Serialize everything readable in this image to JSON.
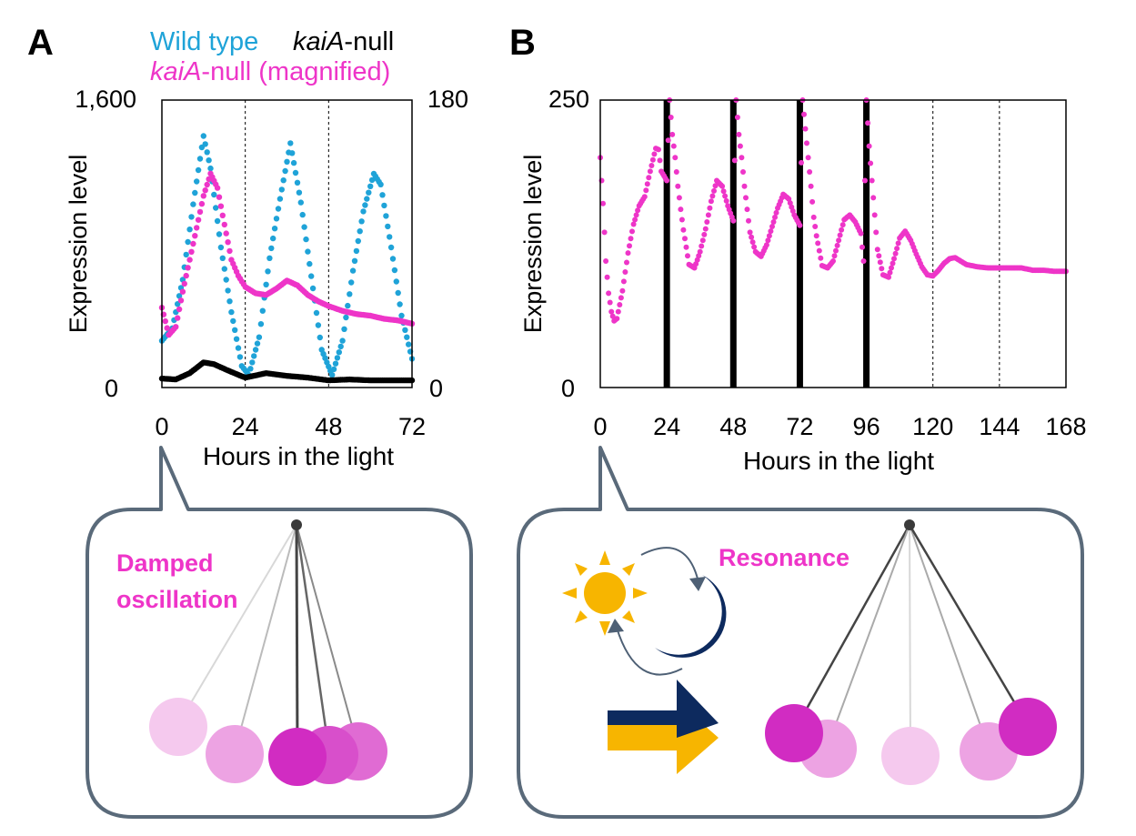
{
  "colors": {
    "wild_type": "#1fa3d8",
    "kaiA_null": "#000000",
    "kaiA_magnified": "#ee35c8",
    "frame": "#5a6a7a",
    "sun": "#f7b500",
    "moon": "#0d2a5e",
    "arrow": "#4e6075"
  },
  "panels": {
    "a": {
      "letter": "A",
      "legend_wild": "Wild type",
      "legend_null_italic": "kaiA",
      "legend_null_rest": "-null",
      "legend_mag_italic": "kaiA",
      "legend_mag_rest": "-null (magnified)",
      "y_left_top": "1,600",
      "y_left_bottom": "0",
      "y_right_top": "180",
      "y_right_bottom": "0",
      "ylabel": "Expression level",
      "xlabel": "Hours in the light",
      "bubble_text_line1": "Damped",
      "bubble_text_line2": "oscillation"
    },
    "b": {
      "letter": "B",
      "y_top": "250",
      "y_bottom": "0",
      "ylabel": "Expression level",
      "xlabel": "Hours in the light",
      "bubble_text": "Resonance"
    }
  },
  "chart_data": [
    {
      "type": "scatter",
      "panel": "A",
      "xlabel": "Hours in the light",
      "ylabel": "Expression level",
      "xlim": [
        0,
        72
      ],
      "xticks": [
        0,
        24,
        48,
        72
      ],
      "vlines_dashed": [
        24,
        48
      ],
      "ylim_left": [
        0,
        1600
      ],
      "ylim_right": [
        0,
        180
      ],
      "series": [
        {
          "name": "Wild type",
          "axis": "left",
          "color": "#1fa3d8",
          "points": [
            [
              0,
              260
            ],
            [
              3,
              330
            ],
            [
              6,
              600
            ],
            [
              9,
              1020
            ],
            [
              12,
              1400
            ],
            [
              14,
              1220
            ],
            [
              17,
              780
            ],
            [
              20,
              420
            ],
            [
              23,
              120
            ],
            [
              25,
              70
            ],
            [
              28,
              280
            ],
            [
              31,
              720
            ],
            [
              34,
              1050
            ],
            [
              37,
              1360
            ],
            [
              40,
              1030
            ],
            [
              43,
              620
            ],
            [
              46,
              210
            ],
            [
              49,
              70
            ],
            [
              52,
              260
            ],
            [
              55,
              650
            ],
            [
              58,
              980
            ],
            [
              61,
              1190
            ],
            [
              63,
              1130
            ],
            [
              66,
              780
            ],
            [
              69,
              400
            ],
            [
              72,
              160
            ]
          ]
        },
        {
          "name": "kaiA-null",
          "axis": "left",
          "color": "#000000",
          "points": [
            [
              0,
              50
            ],
            [
              4,
              45
            ],
            [
              8,
              80
            ],
            [
              12,
              140
            ],
            [
              15,
              130
            ],
            [
              19,
              95
            ],
            [
              24,
              55
            ],
            [
              30,
              80
            ],
            [
              36,
              65
            ],
            [
              42,
              55
            ],
            [
              48,
              40
            ],
            [
              54,
              45
            ],
            [
              60,
              40
            ],
            [
              66,
              40
            ],
            [
              72,
              40
            ]
          ]
        },
        {
          "name": "kaiA-null (magnified)",
          "axis": "right",
          "color": "#ee35c8",
          "points": [
            [
              0,
              50
            ],
            [
              2,
              33
            ],
            [
              4,
              38
            ],
            [
              6,
              60
            ],
            [
              9,
              90
            ],
            [
              12,
              120
            ],
            [
              14,
              134
            ],
            [
              16,
              125
            ],
            [
              18,
              102
            ],
            [
              20,
              80
            ],
            [
              22,
              70
            ],
            [
              24,
              63
            ],
            [
              27,
              59
            ],
            [
              30,
              58
            ],
            [
              33,
              62
            ],
            [
              36,
              67
            ],
            [
              39,
              64
            ],
            [
              42,
              58
            ],
            [
              45,
              54
            ],
            [
              48,
              51
            ],
            [
              52,
              48
            ],
            [
              56,
              46
            ],
            [
              60,
              45
            ],
            [
              64,
              43
            ],
            [
              68,
              42
            ],
            [
              72,
              40
            ]
          ]
        }
      ]
    },
    {
      "type": "scatter",
      "panel": "B",
      "xlabel": "Hours in the light",
      "ylabel": "Expression level",
      "xlim": [
        0,
        168
      ],
      "xticks": [
        0,
        24,
        48,
        72,
        96,
        120,
        144,
        168
      ],
      "ylim": [
        0,
        250
      ],
      "dark_periods_bold_lines": [
        24,
        48,
        72,
        96
      ],
      "vlines_dashed": [
        120,
        144
      ],
      "series": [
        {
          "name": "kaiA-null",
          "color": "#ee35c8",
          "points": [
            [
              0,
              200
            ],
            [
              1,
              160
            ],
            [
              2,
              110
            ],
            [
              3,
              82
            ],
            [
              4,
              66
            ],
            [
              5,
              58
            ],
            [
              6,
              60
            ],
            [
              8,
              84
            ],
            [
              10,
              117
            ],
            [
              12,
              142
            ],
            [
              14,
              158
            ],
            [
              16,
              166
            ],
            [
              18,
              188
            ],
            [
              20,
              208
            ],
            [
              21,
              207
            ],
            [
              22,
              188
            ],
            [
              24,
              180
            ],
            [
              25,
              250
            ],
            [
              26,
              220
            ],
            [
              27,
              200
            ],
            [
              28,
              175
            ],
            [
              29,
              155
            ],
            [
              30,
              137
            ],
            [
              32,
              107
            ],
            [
              34,
              104
            ],
            [
              36,
              118
            ],
            [
              38,
              138
            ],
            [
              40,
              162
            ],
            [
              42,
              180
            ],
            [
              44,
              175
            ],
            [
              46,
              158
            ],
            [
              48,
              145
            ],
            [
              49,
              250
            ],
            [
              50,
              220
            ],
            [
              51,
              200
            ],
            [
              52,
              175
            ],
            [
              53,
              155
            ],
            [
              54,
              135
            ],
            [
              56,
              118
            ],
            [
              58,
              114
            ],
            [
              60,
              124
            ],
            [
              62,
              140
            ],
            [
              64,
              156
            ],
            [
              66,
              168
            ],
            [
              68,
              164
            ],
            [
              70,
              150
            ],
            [
              72,
              141
            ],
            [
              73,
              250
            ],
            [
              74,
              225
            ],
            [
              75,
              200
            ],
            [
              76,
              175
            ],
            [
              77,
              148
            ],
            [
              78,
              132
            ],
            [
              80,
              106
            ],
            [
              82,
              104
            ],
            [
              84,
              110
            ],
            [
              86,
              128
            ],
            [
              88,
              146
            ],
            [
              90,
              150
            ],
            [
              92,
              144
            ],
            [
              94,
              134
            ],
            [
              95,
              110
            ],
            [
              96,
              250
            ],
            [
              97,
              210
            ],
            [
              98,
              180
            ],
            [
              99,
              150
            ],
            [
              100,
              120
            ],
            [
              102,
              98
            ],
            [
              104,
              96
            ],
            [
              106,
              112
            ],
            [
              108,
              130
            ],
            [
              110,
              136
            ],
            [
              112,
              128
            ],
            [
              114,
              116
            ],
            [
              116,
              105
            ],
            [
              118,
              98
            ],
            [
              120,
              97
            ],
            [
              122,
              102
            ],
            [
              124,
              108
            ],
            [
              126,
              112
            ],
            [
              128,
              113
            ],
            [
              130,
              110
            ],
            [
              132,
              107
            ],
            [
              136,
              105
            ],
            [
              140,
              104
            ],
            [
              144,
              104
            ],
            [
              148,
              104
            ],
            [
              152,
              104
            ],
            [
              156,
              102
            ],
            [
              160,
              102
            ],
            [
              164,
              101
            ],
            [
              168,
              101
            ]
          ]
        }
      ]
    }
  ]
}
